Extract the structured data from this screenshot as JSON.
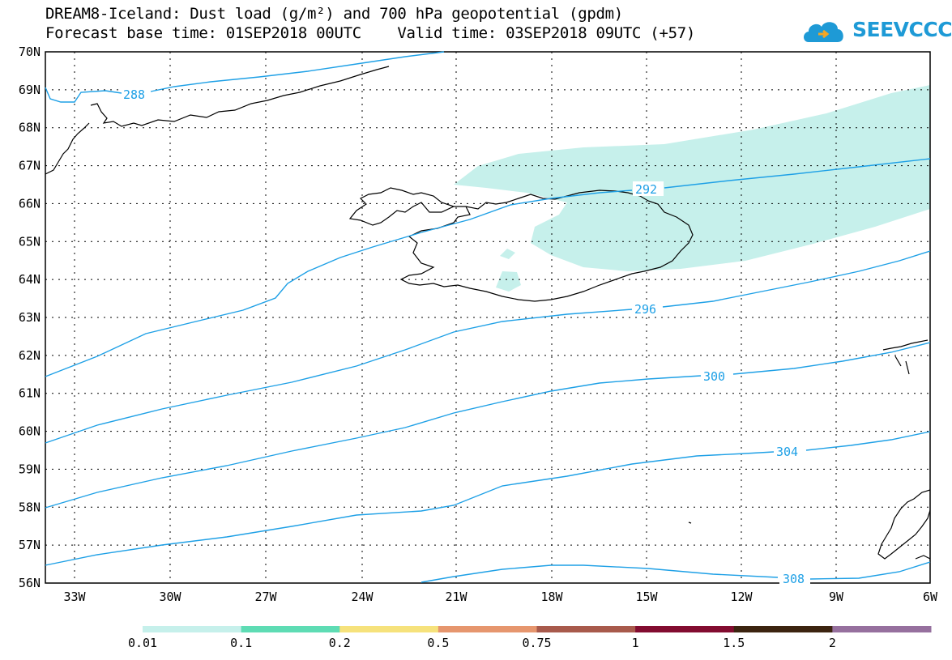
{
  "header": {
    "line1": "DREAM8-Iceland: Dust load (g/m²) and 700 hPa geopotential (gpdm)",
    "line2": "Forecast base time: 01SEP2018 00UTC    Valid time: 03SEP2018 09UTC (+57)"
  },
  "logo": {
    "text": "SEEVCCC",
    "color": "#1e9ad6"
  },
  "map": {
    "lat_labels": [
      "70N",
      "69N",
      "68N",
      "67N",
      "66N",
      "65N",
      "64N",
      "63N",
      "62N",
      "61N",
      "60N",
      "59N",
      "58N",
      "57N",
      "56N"
    ],
    "lon_labels": [
      "33W",
      "30W",
      "27W",
      "24W",
      "21W",
      "18W",
      "15W",
      "12W",
      "9W",
      "6W"
    ],
    "contour_labels": [
      "288",
      "292",
      "296",
      "300",
      "304",
      "308"
    ],
    "contour_color": "#1ea0e6",
    "dust_color": "#c6f0eb"
  },
  "colorbar": {
    "labels": [
      "0.01",
      "0.1",
      "0.2",
      "0.5",
      "0.75",
      "1",
      "1.5",
      "2"
    ],
    "colors": [
      "#c6f0eb",
      "#5edcb4",
      "#f6e27c",
      "#e6966e",
      "#a85a4c",
      "#820c30",
      "#3c2410",
      "#96709e"
    ]
  }
}
